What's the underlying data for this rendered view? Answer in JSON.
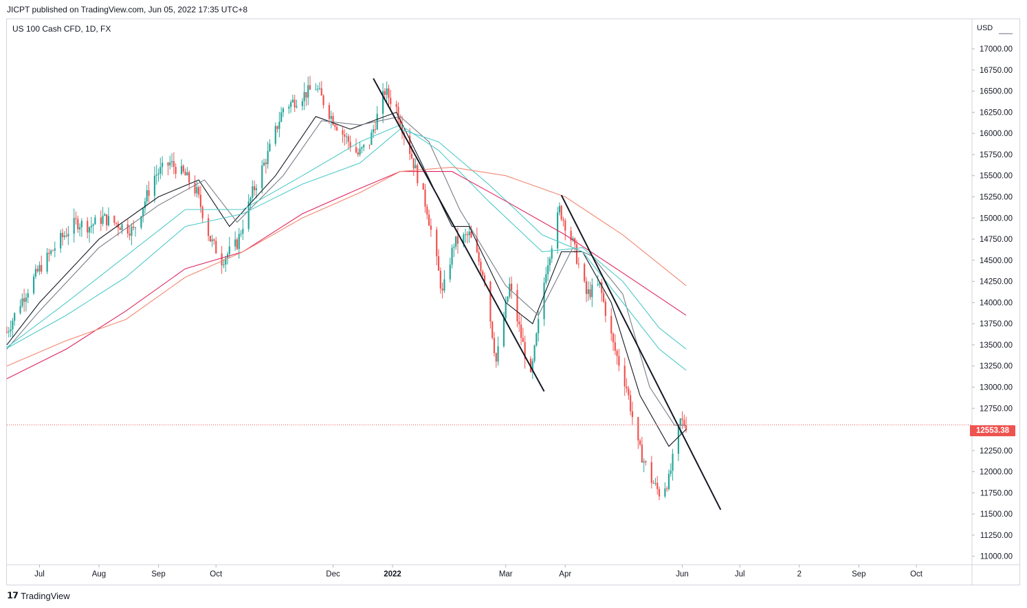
{
  "header": {
    "published": "JICPT published on TradingView.com, Jun 05, 2022 17:35 UTC+8"
  },
  "legend": {
    "symbol": "US 100 Cash CFD, 1D, FX"
  },
  "price_scale": {
    "currency": "USD"
  },
  "last_price": {
    "label": "12553.38",
    "color": "#ef5350"
  },
  "footer": {
    "brand": "TradingView",
    "logo": "tradingview-logo-icon"
  },
  "colors": {
    "up": "#26a69a",
    "down": "#ef5350",
    "ma_black": "#131722",
    "ma_gray": "#787b86",
    "ma_teal": "#4dc9c9",
    "ma_crimson": "#e0245e",
    "ma_salmon": "#f3866f",
    "trendline": "#131722"
  },
  "chart_data": {
    "type": "candlestick",
    "title": "US 100 Cash CFD, 1D, FX",
    "y_axis": {
      "range": [
        10900,
        17350
      ],
      "ticks": [
        11000,
        11250,
        11500,
        11750,
        12000,
        12250,
        12500,
        12750,
        13000,
        13250,
        13500,
        13750,
        14000,
        14250,
        14500,
        14750,
        15000,
        15250,
        15500,
        15750,
        16000,
        16250,
        16500,
        16750,
        17000
      ],
      "tick_labels": [
        "11000.00",
        "11250.00",
        "11500.00",
        "11750.00",
        "12000.00",
        "12250.00",
        "12500.00",
        "12750.00",
        "13000.00",
        "13250.00",
        "13500.00",
        "13750.00",
        "14000.00",
        "14250.00",
        "14500.00",
        "14750.00",
        "15000.00",
        "15250.00",
        "15500.00",
        "15750.00",
        "16000.00",
        "16250.00",
        "16500.00",
        "16750.00",
        "17000.00"
      ]
    },
    "x_axis": {
      "range": [
        "2021-06-14",
        "2022-10-30"
      ],
      "ticks": [
        {
          "date": "2021-07-01",
          "label": "Jul",
          "bold": false
        },
        {
          "date": "2021-08-01",
          "label": "Aug",
          "bold": false
        },
        {
          "date": "2021-09-01",
          "label": "Sep",
          "bold": false
        },
        {
          "date": "2021-10-01",
          "label": "Oct",
          "bold": false
        },
        {
          "date": "2021-12-01",
          "label": "Dec",
          "bold": false
        },
        {
          "date": "2022-01-01",
          "label": "2022",
          "bold": true
        },
        {
          "date": "2022-03-01",
          "label": "Mar",
          "bold": false
        },
        {
          "date": "2022-04-01",
          "label": "Apr",
          "bold": false
        },
        {
          "date": "2022-06-01",
          "label": "Jun",
          "bold": false
        },
        {
          "date": "2022-07-01",
          "label": "Jul",
          "bold": false
        },
        {
          "date": "2022-08-01",
          "label": "2",
          "bold": false
        },
        {
          "date": "2022-09-01",
          "label": "Sep",
          "bold": false
        },
        {
          "date": "2022-10-01",
          "label": "Oct",
          "bold": false
        }
      ]
    },
    "last_price": 12553.38,
    "price_path": [
      [
        "2021-06-14",
        13650
      ],
      [
        "2021-06-21",
        14000
      ],
      [
        "2021-07-01",
        14400
      ],
      [
        "2021-07-12",
        14750
      ],
      [
        "2021-07-20",
        14950
      ],
      [
        "2021-07-27",
        14900
      ],
      [
        "2021-08-03",
        15000
      ],
      [
        "2021-08-19",
        14850
      ],
      [
        "2021-08-30",
        15500
      ],
      [
        "2021-09-07",
        15650
      ],
      [
        "2021-09-15",
        15500
      ],
      [
        "2021-09-21",
        15300
      ],
      [
        "2021-09-28",
        14750
      ],
      [
        "2021-10-04",
        14500
      ],
      [
        "2021-10-12",
        14700
      ],
      [
        "2021-10-20",
        15300
      ],
      [
        "2021-10-28",
        15750
      ],
      [
        "2021-11-05",
        16300
      ],
      [
        "2021-11-22",
        16550
      ],
      [
        "2021-11-30",
        16200
      ],
      [
        "2021-12-06",
        16000
      ],
      [
        "2021-12-14",
        15750
      ],
      [
        "2021-12-20",
        15900
      ],
      [
        "2021-12-28",
        16500
      ],
      [
        "2022-01-03",
        16300
      ],
      [
        "2022-01-10",
        15800
      ],
      [
        "2022-01-19",
        15100
      ],
      [
        "2022-01-27",
        14100
      ],
      [
        "2022-02-02",
        14700
      ],
      [
        "2022-02-10",
        14800
      ],
      [
        "2022-02-18",
        14300
      ],
      [
        "2022-02-24",
        13300
      ],
      [
        "2022-03-03",
        14200
      ],
      [
        "2022-03-14",
        13100
      ],
      [
        "2022-03-22",
        14400
      ],
      [
        "2022-03-29",
        15100
      ],
      [
        "2022-04-05",
        14700
      ],
      [
        "2022-04-12",
        14100
      ],
      [
        "2022-04-19",
        14200
      ],
      [
        "2022-04-26",
        13500
      ],
      [
        "2022-05-03",
        13000
      ],
      [
        "2022-05-09",
        12300
      ],
      [
        "2022-05-16",
        11900
      ],
      [
        "2022-05-20",
        11750
      ],
      [
        "2022-05-25",
        11900
      ],
      [
        "2022-05-31",
        12600
      ],
      [
        "2022-06-03",
        12553.38
      ]
    ],
    "moving_averages": [
      {
        "color": "#131722",
        "points": [
          [
            "2021-06-14",
            13500
          ],
          [
            "2021-07-01",
            14000
          ],
          [
            "2021-08-01",
            14750
          ],
          [
            "2021-09-01",
            15250
          ],
          [
            "2021-09-22",
            15450
          ],
          [
            "2021-10-08",
            14900
          ],
          [
            "2021-11-01",
            15500
          ],
          [
            "2021-11-22",
            16200
          ],
          [
            "2021-12-10",
            16050
          ],
          [
            "2022-01-03",
            16250
          ],
          [
            "2022-01-15",
            15700
          ],
          [
            "2022-02-01",
            14900
          ],
          [
            "2022-02-10",
            14900
          ],
          [
            "2022-03-01",
            14000
          ],
          [
            "2022-03-15",
            13750
          ],
          [
            "2022-03-30",
            14600
          ],
          [
            "2022-04-10",
            14600
          ],
          [
            "2022-04-25",
            14000
          ],
          [
            "2022-05-10",
            12900
          ],
          [
            "2022-05-25",
            12300
          ],
          [
            "2022-06-03",
            12500
          ]
        ]
      },
      {
        "color": "#787b86",
        "points": [
          [
            "2021-06-14",
            13450
          ],
          [
            "2021-07-01",
            13900
          ],
          [
            "2021-08-01",
            14650
          ],
          [
            "2021-09-01",
            15150
          ],
          [
            "2021-09-25",
            15450
          ],
          [
            "2021-10-12",
            14950
          ],
          [
            "2021-11-05",
            15500
          ],
          [
            "2021-11-25",
            16150
          ],
          [
            "2021-12-15",
            16100
          ],
          [
            "2022-01-05",
            16200
          ],
          [
            "2022-01-20",
            15900
          ],
          [
            "2022-02-05",
            15100
          ],
          [
            "2022-03-01",
            14200
          ],
          [
            "2022-03-18",
            13850
          ],
          [
            "2022-04-05",
            14650
          ],
          [
            "2022-04-15",
            14550
          ],
          [
            "2022-05-01",
            14100
          ],
          [
            "2022-05-15",
            13000
          ],
          [
            "2022-05-28",
            12550
          ],
          [
            "2022-06-03",
            12550
          ]
        ]
      },
      {
        "color": "#4dc9c9",
        "points": [
          [
            "2021-06-14",
            13470
          ],
          [
            "2021-07-15",
            14000
          ],
          [
            "2021-08-15",
            14550
          ],
          [
            "2021-09-15",
            15100
          ],
          [
            "2021-10-15",
            15100
          ],
          [
            "2021-11-15",
            15500
          ],
          [
            "2021-12-15",
            15900
          ],
          [
            "2022-01-05",
            16100
          ],
          [
            "2022-01-25",
            15800
          ],
          [
            "2022-02-20",
            15200
          ],
          [
            "2022-03-20",
            14600
          ],
          [
            "2022-04-10",
            14650
          ],
          [
            "2022-05-01",
            14250
          ],
          [
            "2022-05-20",
            13700
          ],
          [
            "2022-06-03",
            13450
          ]
        ]
      },
      {
        "color": "#4dc9c9",
        "points": [
          [
            "2021-06-14",
            13460
          ],
          [
            "2021-07-15",
            13850
          ],
          [
            "2021-08-15",
            14300
          ],
          [
            "2021-09-15",
            14900
          ],
          [
            "2021-10-15",
            15050
          ],
          [
            "2021-11-15",
            15400
          ],
          [
            "2021-12-15",
            15650
          ],
          [
            "2022-01-05",
            16050
          ],
          [
            "2022-01-25",
            15900
          ],
          [
            "2022-02-20",
            15400
          ],
          [
            "2022-03-20",
            14800
          ],
          [
            "2022-04-10",
            14600
          ],
          [
            "2022-05-01",
            14000
          ],
          [
            "2022-05-20",
            13450
          ],
          [
            "2022-06-03",
            13200
          ]
        ]
      },
      {
        "color": "#e0245e",
        "points": [
          [
            "2021-06-14",
            13100
          ],
          [
            "2021-07-15",
            13450
          ],
          [
            "2021-08-15",
            13900
          ],
          [
            "2021-09-15",
            14400
          ],
          [
            "2021-10-15",
            14600
          ],
          [
            "2021-11-15",
            15050
          ],
          [
            "2021-12-15",
            15350
          ],
          [
            "2022-01-05",
            15550
          ],
          [
            "2022-02-01",
            15550
          ],
          [
            "2022-03-01",
            15200
          ],
          [
            "2022-04-01",
            14800
          ],
          [
            "2022-05-01",
            14350
          ],
          [
            "2022-06-03",
            13850
          ]
        ]
      },
      {
        "color": "#f3866f",
        "points": [
          [
            "2021-06-14",
            13250
          ],
          [
            "2021-07-15",
            13550
          ],
          [
            "2021-08-15",
            13800
          ],
          [
            "2021-09-15",
            14300
          ],
          [
            "2021-10-15",
            14600
          ],
          [
            "2021-11-15",
            15000
          ],
          [
            "2021-12-15",
            15300
          ],
          [
            "2022-01-05",
            15550
          ],
          [
            "2022-02-01",
            15600
          ],
          [
            "2022-03-01",
            15500
          ],
          [
            "2022-04-01",
            15250
          ],
          [
            "2022-05-01",
            14800
          ],
          [
            "2022-06-03",
            14200
          ]
        ]
      }
    ],
    "trendlines": [
      {
        "from": [
          "2021-12-22",
          16650
        ],
        "to": [
          "2022-03-21",
          12950
        ]
      },
      {
        "from": [
          "2022-03-30",
          15270
        ],
        "to": [
          "2022-06-21",
          11550
        ]
      }
    ]
  }
}
